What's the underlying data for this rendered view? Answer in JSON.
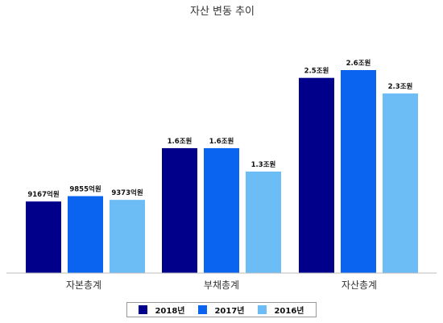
{
  "chart_data": {
    "type": "bar",
    "title": "자산 변동 추이",
    "xlabel": "",
    "ylabel": "",
    "categories": [
      "자본총계",
      "부채총계",
      "자산총계"
    ],
    "unit": "억원",
    "ylim": [
      0,
      30000
    ],
    "grid": false,
    "legend_position": "bottom",
    "series": [
      {
        "name": "2018년",
        "color": "#00008b",
        "values": [
          9167,
          16000,
          25000
        ],
        "labels": [
          "9167억원",
          "1.6조원",
          "2.5조원"
        ]
      },
      {
        "name": "2017년",
        "color": "#0a64f0",
        "values": [
          9855,
          16000,
          26000
        ],
        "labels": [
          "9855억원",
          "1.6조원",
          "2.6조원"
        ]
      },
      {
        "name": "2016년",
        "color": "#6cbcf5",
        "values": [
          9373,
          13000,
          23000
        ],
        "labels": [
          "9373억원",
          "1.3조원",
          "2.3조원"
        ]
      }
    ]
  }
}
